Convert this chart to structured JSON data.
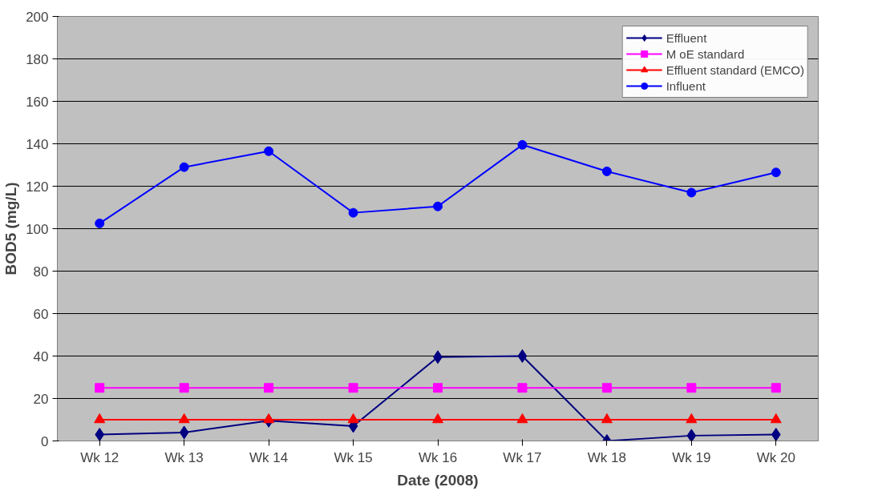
{
  "chart_data": {
    "type": "line",
    "xlabel": "Date (2008)",
    "ylabel": "BOD5 (mg/L)",
    "categories": [
      "Wk 12",
      "Wk 13",
      "Wk 14",
      "Wk 15",
      "Wk 16",
      "Wk 17",
      "Wk 18",
      "Wk 19",
      "Wk 20"
    ],
    "series": [
      {
        "name": "Effluent",
        "color": "#000080",
        "marker": "diamond",
        "values": [
          3,
          4,
          9.5,
          7,
          39.5,
          40,
          0,
          2.5,
          3
        ]
      },
      {
        "name": "M oE standard",
        "color": "#ff00ff",
        "marker": "square",
        "values": [
          25,
          25,
          25,
          25,
          25,
          25,
          25,
          25,
          25
        ]
      },
      {
        "name": "Effluent standard (EMCO)",
        "color": "#ff0000",
        "marker": "triangle",
        "values": [
          10,
          10,
          10,
          10,
          10,
          10,
          10,
          10,
          10
        ]
      },
      {
        "name": "Influent",
        "color": "#0000ff",
        "marker": "circle",
        "values": [
          102.5,
          129,
          136.5,
          107.5,
          110.5,
          139.5,
          127,
          117,
          126.5
        ]
      }
    ],
    "ylim": [
      0,
      200
    ],
    "yticks": [
      0,
      20,
      40,
      60,
      80,
      100,
      120,
      140,
      160,
      180,
      200
    ],
    "grid": "y",
    "legend": "top right"
  }
}
